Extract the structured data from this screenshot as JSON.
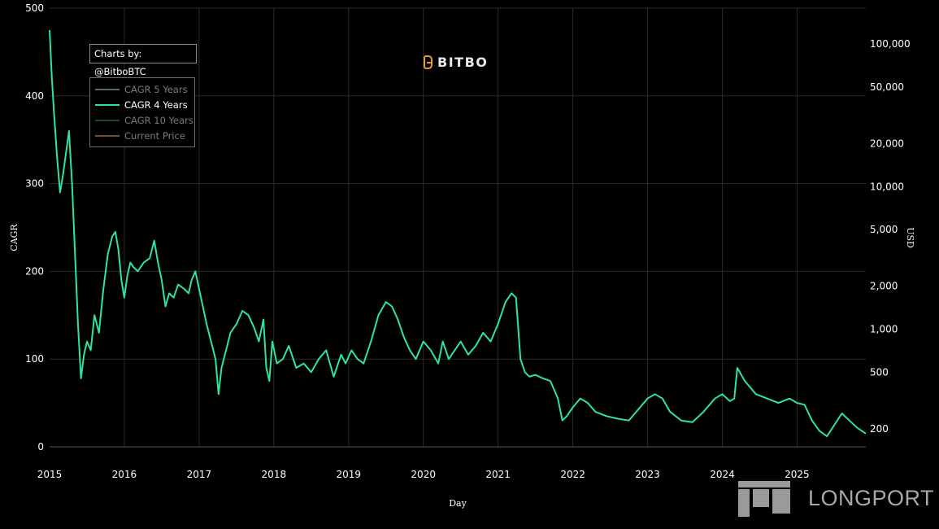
{
  "chart_data": {
    "type": "line",
    "title": "",
    "xlabel": "Day",
    "ylabel_left": "CAGR",
    "ylabel_right": "USD",
    "xlim": [
      2015,
      2025.92
    ],
    "ylim_left": [
      0,
      500
    ],
    "yticks_left": [
      0,
      100,
      200,
      300,
      400,
      500
    ],
    "yticks_right": [
      {
        "label": "100,000",
        "value": 100000
      },
      {
        "label": "50,000",
        "value": 50000
      },
      {
        "label": "20,000",
        "value": 20000
      },
      {
        "label": "10,000",
        "value": 10000
      },
      {
        "label": "5,000",
        "value": 5000
      },
      {
        "label": "2,000",
        "value": 2000
      },
      {
        "label": "1,000",
        "value": 1000
      },
      {
        "label": "500",
        "value": 500
      },
      {
        "label": "200",
        "value": 200
      }
    ],
    "xticks": [
      "2015",
      "2016",
      "2017",
      "2018",
      "2019",
      "2020",
      "2021",
      "2022",
      "2023",
      "2024",
      "2025"
    ],
    "grid": true,
    "legend_position": "top-left",
    "series": [
      {
        "name": "CAGR 4 Years",
        "color": "#2ee59d",
        "x": [
          2015.0,
          2015.03,
          2015.06,
          2015.1,
          2015.14,
          2015.18,
          2015.22,
          2015.26,
          2015.3,
          2015.35,
          2015.38,
          2015.42,
          2015.46,
          2015.5,
          2015.55,
          2015.6,
          2015.66,
          2015.72,
          2015.78,
          2015.84,
          2015.88,
          2015.92,
          2015.96,
          2016.0,
          2016.04,
          2016.08,
          2016.12,
          2016.18,
          2016.26,
          2016.34,
          2016.4,
          2016.45,
          2016.5,
          2016.55,
          2016.6,
          2016.66,
          2016.72,
          2016.8,
          2016.86,
          2016.9,
          2016.95,
          2017.0,
          2017.05,
          2017.1,
          2017.16,
          2017.22,
          2017.26,
          2017.3,
          2017.36,
          2017.42,
          2017.5,
          2017.58,
          2017.66,
          2017.74,
          2017.8,
          2017.86,
          2017.9,
          2017.94,
          2017.98,
          2018.04,
          2018.12,
          2018.2,
          2018.3,
          2018.4,
          2018.5,
          2018.6,
          2018.7,
          2018.8,
          2018.9,
          2018.96,
          2019.04,
          2019.12,
          2019.2,
          2019.3,
          2019.4,
          2019.5,
          2019.58,
          2019.66,
          2019.74,
          2019.82,
          2019.9,
          2020.0,
          2020.1,
          2020.2,
          2020.26,
          2020.34,
          2020.42,
          2020.5,
          2020.6,
          2020.7,
          2020.8,
          2020.9,
          2021.0,
          2021.1,
          2021.18,
          2021.24,
          2021.3,
          2021.36,
          2021.42,
          2021.5,
          2021.6,
          2021.7,
          2021.8,
          2021.86,
          2021.92,
          2022.0,
          2022.1,
          2022.2,
          2022.3,
          2022.45,
          2022.6,
          2022.75,
          2022.9,
          2023.0,
          2023.1,
          2023.2,
          2023.3,
          2023.45,
          2023.6,
          2023.75,
          2023.9,
          2024.0,
          2024.1,
          2024.16,
          2024.2,
          2024.3,
          2024.45,
          2024.6,
          2024.75,
          2024.9,
          2025.0,
          2025.1,
          2025.2,
          2025.3,
          2025.4,
          2025.5,
          2025.6,
          2025.7,
          2025.8,
          2025.92
        ],
        "values": [
          475,
          420,
          380,
          330,
          290,
          310,
          335,
          360,
          300,
          200,
          140,
          78,
          105,
          120,
          110,
          150,
          130,
          180,
          220,
          240,
          245,
          225,
          190,
          170,
          195,
          210,
          205,
          200,
          210,
          215,
          235,
          210,
          190,
          160,
          175,
          170,
          185,
          180,
          175,
          190,
          200,
          180,
          160,
          140,
          120,
          100,
          60,
          90,
          110,
          130,
          140,
          155,
          150,
          135,
          120,
          145,
          90,
          75,
          120,
          95,
          100,
          115,
          90,
          95,
          85,
          100,
          110,
          80,
          105,
          95,
          110,
          100,
          95,
          120,
          150,
          165,
          160,
          145,
          125,
          110,
          100,
          120,
          110,
          95,
          120,
          100,
          110,
          120,
          105,
          115,
          130,
          120,
          140,
          165,
          175,
          170,
          100,
          85,
          80,
          82,
          78,
          75,
          55,
          30,
          35,
          45,
          55,
          50,
          40,
          35,
          32,
          30,
          45,
          55,
          60,
          55,
          40,
          30,
          28,
          40,
          55,
          60,
          52,
          55,
          90,
          75,
          60,
          55,
          50,
          55,
          50,
          48,
          30,
          18,
          12,
          25,
          38,
          30,
          22,
          15
        ]
      }
    ],
    "legend": [
      {
        "name": "CAGR 5 Years",
        "color": "#5a6a66",
        "active": false
      },
      {
        "name": "CAGR 4 Years",
        "color": "#2ee59d",
        "active": true
      },
      {
        "name": "CAGR 10 Years",
        "color": "#1f4a2c",
        "active": false
      },
      {
        "name": "Current Price",
        "color": "#7a4a2a",
        "active": false
      }
    ]
  },
  "credit": "Charts by: @BitboBTC",
  "logo_text": "BITBO",
  "watermark_text": "LONGPORT"
}
